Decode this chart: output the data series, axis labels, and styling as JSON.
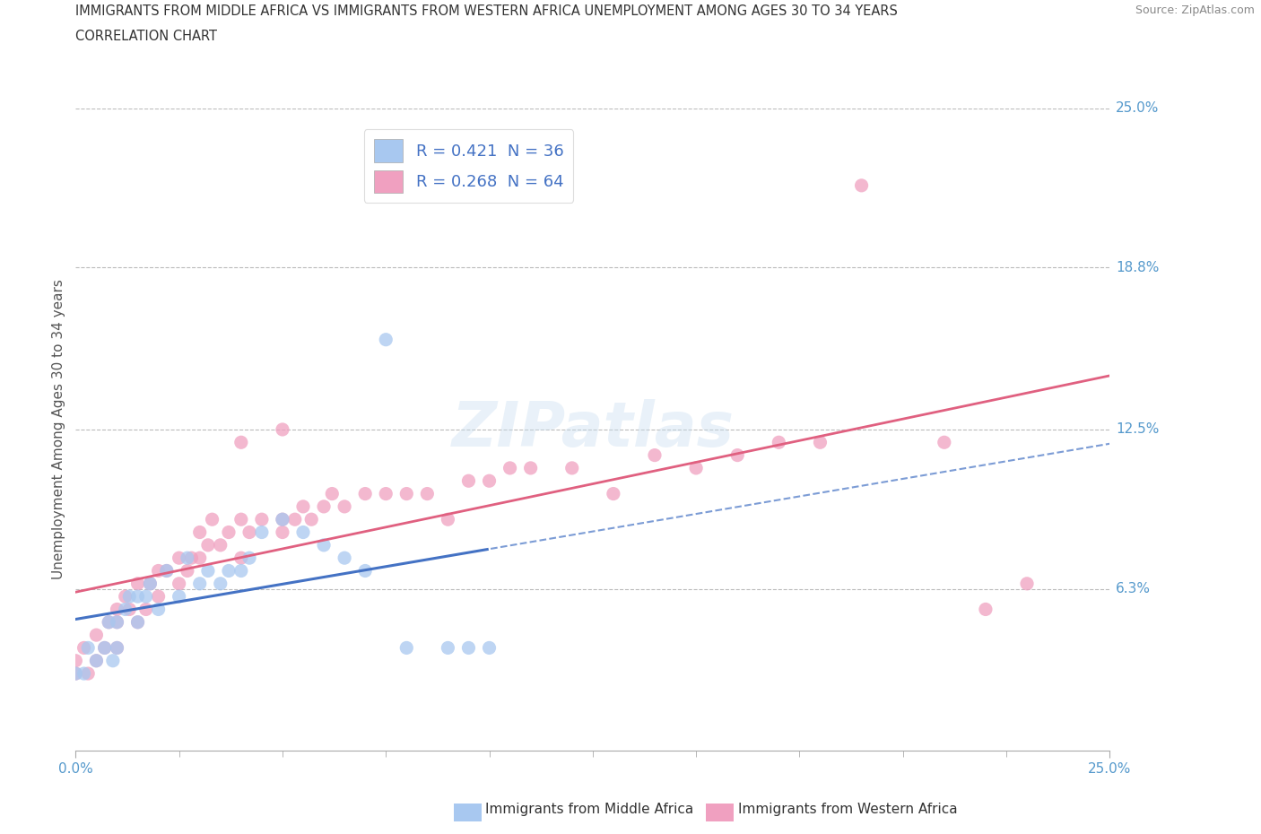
{
  "title_line1": "IMMIGRANTS FROM MIDDLE AFRICA VS IMMIGRANTS FROM WESTERN AFRICA UNEMPLOYMENT AMONG AGES 30 TO 34 YEARS",
  "title_line2": "CORRELATION CHART",
  "source_text": "Source: ZipAtlas.com",
  "ylabel": "Unemployment Among Ages 30 to 34 years",
  "xlim": [
    0.0,
    0.25
  ],
  "ylim": [
    0.0,
    0.25
  ],
  "ytick_labels": [
    "6.3%",
    "12.5%",
    "18.8%",
    "25.0%"
  ],
  "ytick_values": [
    0.063,
    0.125,
    0.188,
    0.25
  ],
  "blue_color": "#a8c8f0",
  "pink_color": "#f0a0c0",
  "blue_line_color": "#4472c4",
  "pink_line_color": "#e06080",
  "grid_color": "#cccccc",
  "blue_R": 0.421,
  "blue_N": 36,
  "pink_R": 0.268,
  "pink_N": 64,
  "blue_x": [
    0.0,
    0.002,
    0.003,
    0.005,
    0.007,
    0.008,
    0.009,
    0.01,
    0.01,
    0.012,
    0.013,
    0.015,
    0.015,
    0.017,
    0.018,
    0.02,
    0.022,
    0.025,
    0.027,
    0.03,
    0.032,
    0.035,
    0.037,
    0.04,
    0.042,
    0.045,
    0.05,
    0.055,
    0.06,
    0.065,
    0.07,
    0.075,
    0.08,
    0.09,
    0.095,
    0.1
  ],
  "blue_y": [
    0.03,
    0.03,
    0.04,
    0.035,
    0.04,
    0.05,
    0.035,
    0.04,
    0.05,
    0.055,
    0.06,
    0.05,
    0.06,
    0.06,
    0.065,
    0.055,
    0.07,
    0.06,
    0.075,
    0.065,
    0.07,
    0.065,
    0.07,
    0.07,
    0.075,
    0.085,
    0.09,
    0.085,
    0.08,
    0.075,
    0.07,
    0.16,
    0.04,
    0.04,
    0.04,
    0.04
  ],
  "pink_x": [
    0.0,
    0.0,
    0.002,
    0.003,
    0.005,
    0.005,
    0.007,
    0.008,
    0.01,
    0.01,
    0.01,
    0.012,
    0.013,
    0.015,
    0.015,
    0.017,
    0.018,
    0.02,
    0.02,
    0.022,
    0.025,
    0.025,
    0.027,
    0.028,
    0.03,
    0.03,
    0.032,
    0.033,
    0.035,
    0.037,
    0.04,
    0.04,
    0.042,
    0.045,
    0.05,
    0.05,
    0.053,
    0.055,
    0.057,
    0.06,
    0.062,
    0.065,
    0.07,
    0.075,
    0.08,
    0.085,
    0.09,
    0.095,
    0.1,
    0.105,
    0.11,
    0.12,
    0.13,
    0.14,
    0.15,
    0.16,
    0.17,
    0.18,
    0.19,
    0.22,
    0.04,
    0.05,
    0.21,
    0.23
  ],
  "pink_y": [
    0.03,
    0.035,
    0.04,
    0.03,
    0.035,
    0.045,
    0.04,
    0.05,
    0.04,
    0.05,
    0.055,
    0.06,
    0.055,
    0.05,
    0.065,
    0.055,
    0.065,
    0.06,
    0.07,
    0.07,
    0.065,
    0.075,
    0.07,
    0.075,
    0.075,
    0.085,
    0.08,
    0.09,
    0.08,
    0.085,
    0.075,
    0.09,
    0.085,
    0.09,
    0.085,
    0.09,
    0.09,
    0.095,
    0.09,
    0.095,
    0.1,
    0.095,
    0.1,
    0.1,
    0.1,
    0.1,
    0.09,
    0.105,
    0.105,
    0.11,
    0.11,
    0.11,
    0.1,
    0.115,
    0.11,
    0.115,
    0.12,
    0.12,
    0.22,
    0.055,
    0.12,
    0.125,
    0.12,
    0.065
  ]
}
